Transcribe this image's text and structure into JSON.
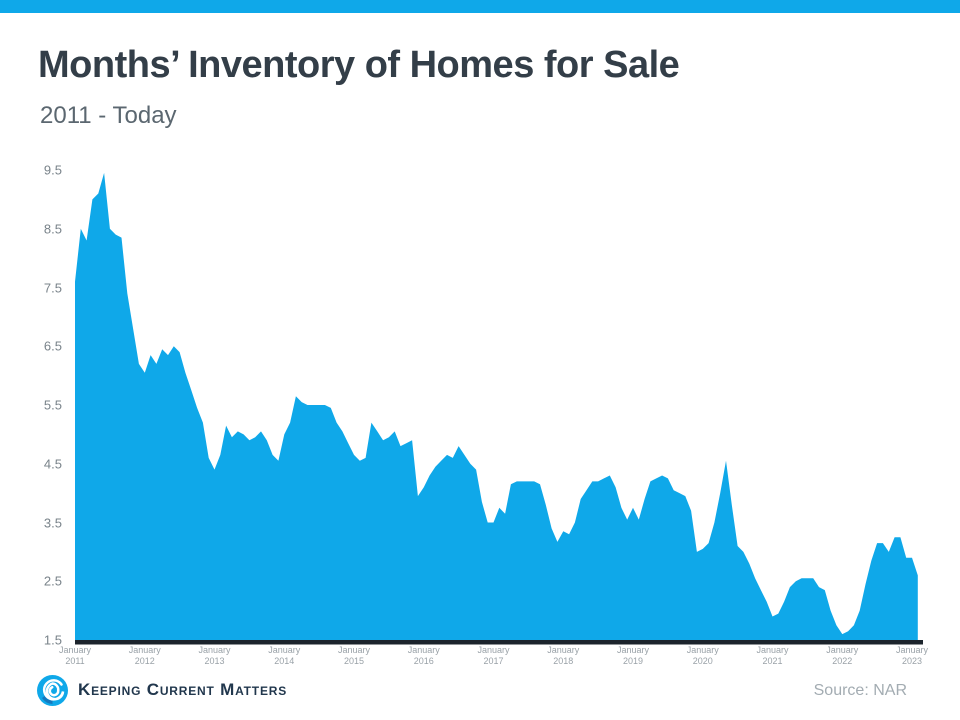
{
  "page": {
    "accent_color": "#0FA8E9",
    "background_color": "#FFFFFF"
  },
  "header": {
    "title": "Months’ Inventory of Homes for Sale",
    "subtitle": "2011 - Today"
  },
  "footer": {
    "brand": "Keeping Current Matters",
    "source": "Source: NAR",
    "logo_icon": "kcm-swirl-icon",
    "brand_color": "#21374D",
    "source_color": "#A3ACB2"
  },
  "chart_data": {
    "type": "area",
    "title": "Months’ Inventory of Homes for Sale",
    "subtitle": "2011 - Today",
    "source": "Source: NAR",
    "grid": false,
    "legend": false,
    "area_color": "#0FA8E9",
    "axis_line_color": "#1C242C",
    "ylim": [
      1.5,
      9.9
    ],
    "y_tick_values": [
      9.5,
      8.5,
      7.5,
      6.5,
      5.5,
      4.5,
      3.5,
      2.5,
      1.5
    ],
    "x_tick_labels": [
      {
        "month": "January",
        "year": "2011"
      },
      {
        "month": "January",
        "year": "2012"
      },
      {
        "month": "January",
        "year": "2013"
      },
      {
        "month": "January",
        "year": "2014"
      },
      {
        "month": "January",
        "year": "2015"
      },
      {
        "month": "January",
        "year": "2016"
      },
      {
        "month": "January",
        "year": "2017"
      },
      {
        "month": "January",
        "year": "2018"
      },
      {
        "month": "January",
        "year": "2019"
      },
      {
        "month": "January",
        "year": "2020"
      },
      {
        "month": "January",
        "year": "2021"
      },
      {
        "month": "January",
        "year": "2022"
      },
      {
        "month": "January",
        "year": "2023"
      }
    ],
    "series": [
      {
        "name": "Months' inventory of homes for sale",
        "unit": "months of supply",
        "interval": "monthly",
        "start": "2011-01",
        "end": "2023-02",
        "values": [
          7.6,
          8.5,
          8.3,
          9.0,
          9.1,
          9.45,
          8.5,
          8.4,
          8.35,
          7.4,
          6.8,
          6.2,
          6.05,
          6.35,
          6.2,
          6.45,
          6.35,
          6.5,
          6.4,
          6.05,
          5.75,
          5.45,
          5.2,
          4.6,
          4.4,
          4.65,
          5.15,
          4.95,
          5.05,
          5.0,
          4.9,
          4.95,
          5.05,
          4.9,
          4.65,
          4.55,
          5.0,
          5.2,
          5.65,
          5.55,
          5.5,
          5.5,
          5.5,
          5.5,
          5.45,
          5.2,
          5.05,
          4.85,
          4.65,
          4.55,
          4.6,
          5.2,
          5.05,
          4.9,
          4.95,
          5.05,
          4.8,
          4.85,
          4.9,
          3.95,
          4.1,
          4.3,
          4.45,
          4.55,
          4.65,
          4.6,
          4.8,
          4.65,
          4.5,
          4.4,
          3.85,
          3.5,
          3.5,
          3.75,
          3.65,
          4.15,
          4.2,
          4.2,
          4.2,
          4.2,
          4.15,
          3.8,
          3.4,
          3.17,
          3.35,
          3.3,
          3.5,
          3.9,
          4.05,
          4.2,
          4.2,
          4.25,
          4.3,
          4.1,
          3.75,
          3.55,
          3.75,
          3.55,
          3.9,
          4.2,
          4.25,
          4.3,
          4.25,
          4.05,
          4.0,
          3.95,
          3.7,
          3.0,
          3.05,
          3.15,
          3.5,
          4.0,
          4.55,
          3.8,
          3.1,
          3.0,
          2.8,
          2.55,
          2.35,
          2.15,
          1.9,
          1.95,
          2.15,
          2.4,
          2.5,
          2.55,
          2.55,
          2.55,
          2.4,
          2.35,
          2.0,
          1.75,
          1.6,
          1.65,
          1.75,
          2.0,
          2.45,
          2.85,
          3.15,
          3.15,
          3.0,
          3.25,
          3.25,
          2.9,
          2.9,
          2.6
        ]
      }
    ]
  }
}
